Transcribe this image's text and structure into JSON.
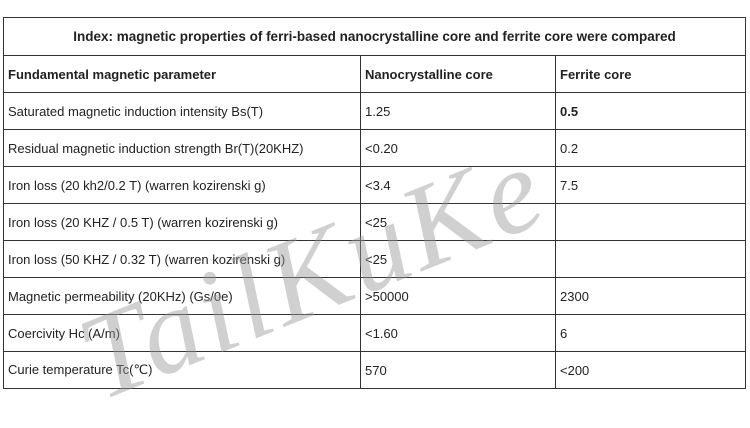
{
  "table": {
    "title": "Index: magnetic properties of ferri-based nanocrystalline core and ferrite core were compared",
    "header": [
      "Fundamental magnetic parameter",
      "Nanocrystalline core",
      "Ferrite core"
    ],
    "rows": [
      [
        "Saturated magnetic induction intensity Bs(T)",
        "1.25",
        "0.5"
      ],
      [
        "Residual magnetic induction strength Br(T)(20KHZ)",
        "<0.20",
        "0.2"
      ],
      [
        "Iron loss (20 kh2/0.2 T) (warren kozirenski g)",
        "<3.4",
        "7.5"
      ],
      [
        "Iron loss (20 KHZ / 0.5 T) (warren kozirenski g)",
        "<25",
        ""
      ],
      [
        "Iron loss (50 KHZ / 0.32 T) (warren kozirenski g)",
        "<25",
        ""
      ],
      [
        "Magnetic permeability (20KHz) (Gs/0e)",
        ">50000",
        "2300"
      ],
      [
        "Coercivity Hc (A/m)",
        "<1.60",
        "6"
      ],
      [
        "Curie temperature Tc(℃)",
        "570",
        "<200"
      ]
    ]
  },
  "watermark": "TailKuKe"
}
